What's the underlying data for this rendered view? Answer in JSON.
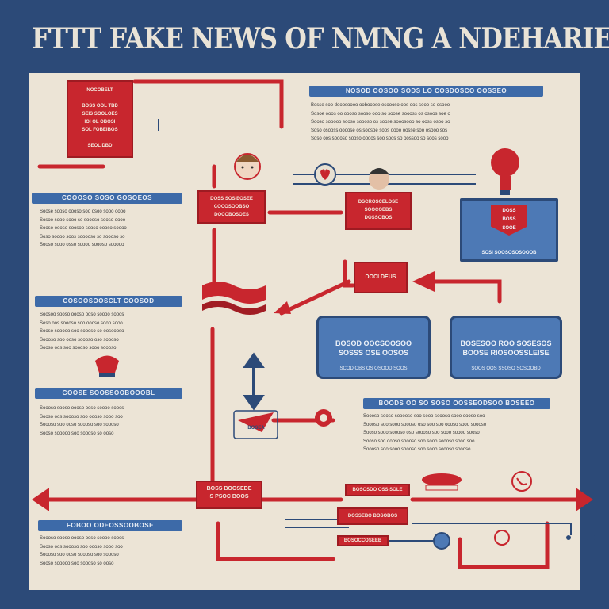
{
  "title": "FTTT  FAKE NEWS OF NMNG A NDEHARIES",
  "colors": {
    "navy": "#2c4a78",
    "paper": "#ece4d6",
    "red": "#c8262e",
    "blue": "#4d79b5"
  },
  "red_boxes": {
    "top_left": "NOCOBELT\n\nBOSS OOL TBD\nSEIS SOOLOES\nIOI OL OBOSI\nSOL FOBEIBOS\n\nSEOL DBD",
    "center_left": "DOSS SOSIEOSEE\nCOCOSOOBSO\nDOCOBOSOES",
    "center": "DSCROSCELOSE\nSOOCOEBS\nDOSSOBOS",
    "middle": "DOCI DEUS",
    "bottom_left": "BOSS BOOSEDE\nS PSOC BOOS",
    "bottom_center_top": "BOSOSDO OSS SOLE",
    "bottom_center_mid": "DOSSEBO BOSOBOS",
    "bottom_center_low": "BOSOCCOSEEB",
    "arrow_tag": "BOSEA"
  },
  "blue_banners": {
    "top_right": "NOSOD OOSOO SODS LO COSDOSCO OOSSEO",
    "left_1": "COOOSO SOSO GOSOEOS",
    "left_2": "COSOOSOOSCLT COOSOD",
    "left_3": "GOOSE SOOSSOOBOOOBL",
    "right_mid": "BOODS OO SO SOSO OOSSEODSOO BOSEEO",
    "left_4": "FOBOO ODEOSSOOBOSE"
  },
  "blue_cards": {
    "card_1": {
      "title": "BOSOD OOCSOOSOO\nSOSSS OSE OOSOS",
      "sub": "SCOD OBS OS OSOOD SOOS"
    },
    "card_2": {
      "title": "BOSESOO ROO SOSESOS\nBOOSE RIOSOOSSLEISE",
      "sub": "SOOS OOS SSOSO SOSOOBD"
    },
    "panel": {
      "badge": "DOSS\nBOSS\nSOOE",
      "caption": "SOSI SOOSOSOSOOOB"
    }
  },
  "text_blocks": {
    "top_right": "Bosse soo dooosoooo oobooose esoooso oos oos sooo so osooo\nSosoe ooos oo oooso sooso ooo so soose soooss os osoos soe o\nSooso sooooo sooso soooso os soose sooosooo so ooss osoo so\nSoso osooss oooose os soosoe soos oooo oosse soo osooo sos\nSoso oos soooso sooso oooos soo soos so oossoo so soos sooo",
    "left_1": "Soose sooso oooso soo osoo sooo oooo\nSosoo sooo sooo so soooso sooso oooo\nSooso oooso soosoo sooso oooso soooo\nSoso soooo soos sooooso so soooso so\nSooso sooo osso soooo soooso sooooo",
    "left_2": "Soosoo sooso oooso ooso soooo sooos\nSoso oos soooso soo oooso sooo sooo\nSooso sooooo soo soooso so oosoooso\nSoooso soo ooso soooso oso soooso\nSooso oos soo soooso sooo soooso",
    "left_3": "Soooso sooso oooso ooso soooo sooos\nSooso oos soooso soo oooso sooo soo\nSoooso soo ooso soooso soo soooso\nSooso sooooo soo soooso so ooso",
    "right_mid": "Soooso sooso sooooso soo sooo soooso sooo oooso soo\nSoooso soo sooo soooso oso soo soo oooso sooo soooso\nSooso sooo soooso oso soooso soo sooo soooo sooso\nSooso soo oooso soooso soo sooo soooso sooo soo\nSoooso soo sooo soooso soo sooo soooso soooso",
    "left_4": "Soooso sooso oooso ooso soooo sooos\nSooso oos soooso soo oooso sooo soo\nSoooso soo ooso soooso soo soooso\nSooso sooooo soo soooso so ooso"
  },
  "icons": [
    "portrait-icon",
    "heart-icon",
    "portrait-icon",
    "lightbulb-icon",
    "megaphone-icon",
    "phone-icon",
    "magnifier-icon",
    "lips-icon",
    "paper-plane-icon"
  ]
}
